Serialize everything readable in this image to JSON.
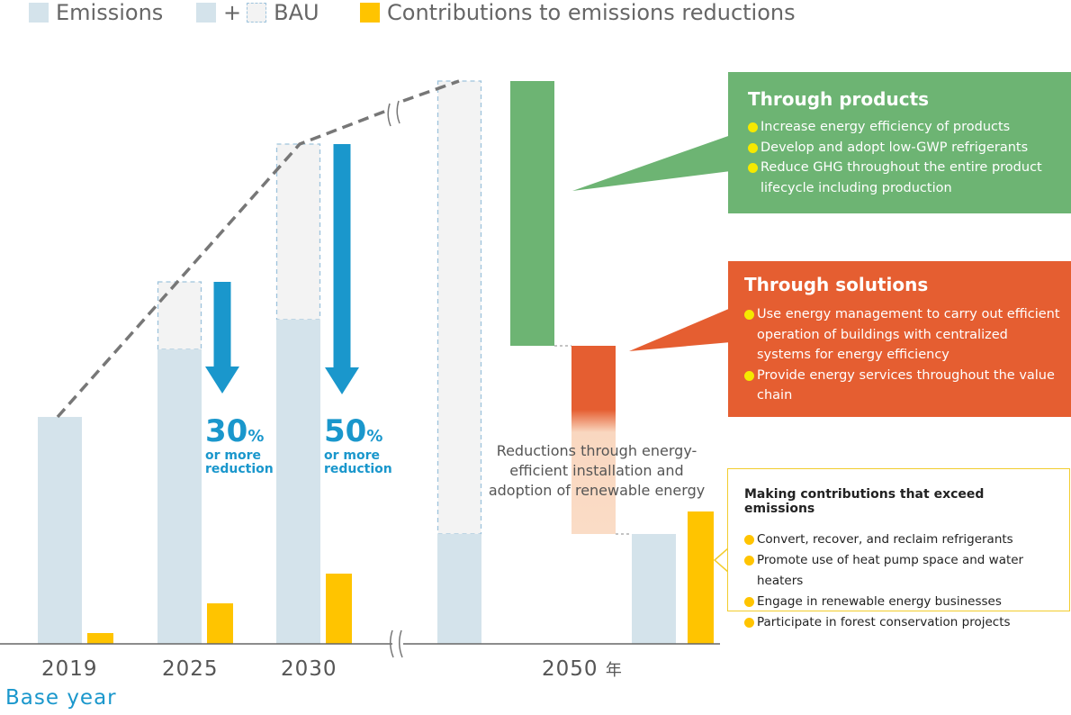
{
  "legend": {
    "emissions": "Emissions",
    "plus": "+",
    "bau": "BAU",
    "contributions": "Contributions to emissions reductions"
  },
  "colors": {
    "emissions": "#d4e3eb",
    "bau": "#f3f3f3",
    "bau_border": "#9ec3dc",
    "contributions": "#ffc400",
    "products": "#6db473",
    "solutions": "#e55e31",
    "arrow": "#1a97cc",
    "bullet": "#f5e900"
  },
  "chart_data": {
    "type": "bar",
    "categories": [
      "2019",
      "2025",
      "2030",
      "2050"
    ],
    "x_unit": "年",
    "base_year_label": "Base year",
    "series": [
      {
        "name": "Emissions",
        "values": [
          252,
          327,
          360,
          122
        ]
      },
      {
        "name": "BAU",
        "values": [
          252,
          402,
          555,
          625
        ]
      },
      {
        "name": "Contributions to emissions reductions",
        "values": [
          12,
          45,
          78,
          147
        ]
      }
    ],
    "reductions": [
      {
        "year": "2025",
        "value": "30",
        "unit": "%",
        "text": "or more reduction"
      },
      {
        "year": "2030",
        "value": "50",
        "unit": "%",
        "text": "or more reduction"
      }
    ]
  },
  "waterfall": {
    "products_top": 625,
    "products_bottom": 331,
    "solutions_bottom": 122,
    "label": "Reductions through energy-efficient installation and adoption of renewable energy"
  },
  "products": {
    "title": "Through products",
    "items": [
      "Increase energy efficiency of products",
      "Develop and adopt low-GWP refrigerants",
      "Reduce GHG throughout the entire product lifecycle including production"
    ]
  },
  "solutions": {
    "title": "Through solutions",
    "items": [
      "Use energy management to carry out efficient operation of buildings with centralized systems for energy efficiency",
      "Provide energy services throughout the value chain"
    ]
  },
  "exceed": {
    "title": "Making contributions that exceed emissions",
    "items": [
      "Convert, recover, and reclaim refrigerants",
      "Promote use of heat pump space and water heaters",
      "Engage in renewable energy businesses",
      "Participate in forest conservation projects"
    ]
  }
}
